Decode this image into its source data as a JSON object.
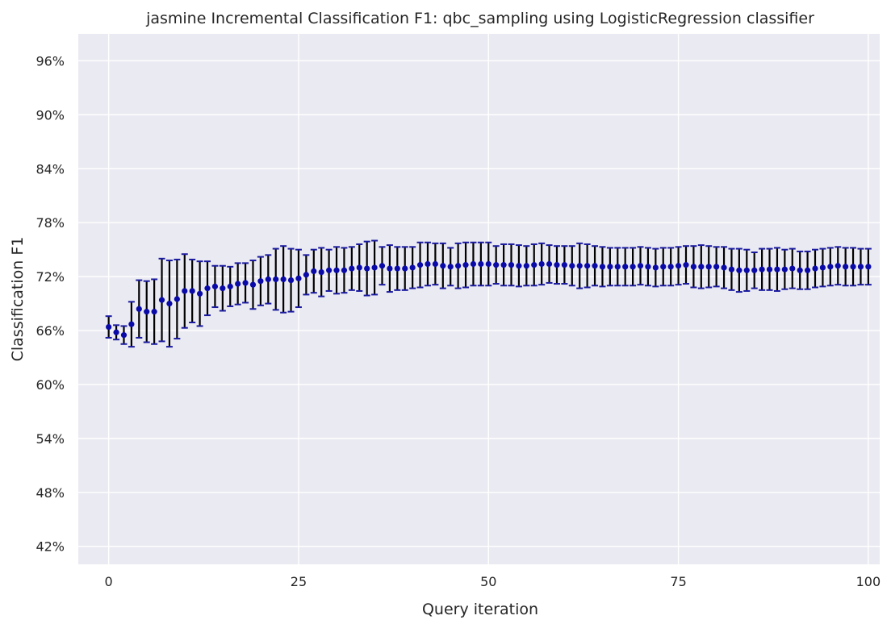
{
  "chart_data": {
    "type": "scatter",
    "title": "jasmine Incremental Classification F1: qbc_sampling using LogisticRegression classifier",
    "xlabel": "Query iteration",
    "ylabel": "Classification F1",
    "xlim": [
      -4,
      101.5
    ],
    "ylim": [
      0.4,
      0.99
    ],
    "x_ticks": [
      0,
      25,
      50,
      75,
      100
    ],
    "y_ticks": [
      0.42,
      0.48,
      0.54,
      0.6,
      0.66,
      0.72,
      0.78,
      0.84,
      0.9,
      0.96
    ],
    "y_tick_labels": [
      "42%",
      "48%",
      "54%",
      "60%",
      "66%",
      "72%",
      "78%",
      "84%",
      "90%",
      "96%"
    ],
    "grid": true,
    "colors": {
      "background": "#eaeaf2",
      "grid": "#ffffff",
      "marker": "#0a0aa8",
      "errorbar": "#000000",
      "cap": "#1a1aa0"
    },
    "x": [
      0,
      1,
      2,
      3,
      4,
      5,
      6,
      7,
      8,
      9,
      10,
      11,
      12,
      13,
      14,
      15,
      16,
      17,
      18,
      19,
      20,
      21,
      22,
      23,
      24,
      25,
      26,
      27,
      28,
      29,
      30,
      31,
      32,
      33,
      34,
      35,
      36,
      37,
      38,
      39,
      40,
      41,
      42,
      43,
      44,
      45,
      46,
      47,
      48,
      49,
      50,
      51,
      52,
      53,
      54,
      55,
      56,
      57,
      58,
      59,
      60,
      61,
      62,
      63,
      64,
      65,
      66,
      67,
      68,
      69,
      70,
      71,
      72,
      73,
      74,
      75,
      76,
      77,
      78,
      79,
      80,
      81,
      82,
      83,
      84,
      85,
      86,
      87,
      88,
      89,
      90,
      91,
      92,
      93,
      94,
      95,
      96,
      97,
      98,
      99,
      100
    ],
    "y": [
      0.664,
      0.658,
      0.655,
      0.667,
      0.684,
      0.681,
      0.681,
      0.694,
      0.69,
      0.695,
      0.704,
      0.704,
      0.701,
      0.707,
      0.709,
      0.707,
      0.709,
      0.712,
      0.713,
      0.711,
      0.715,
      0.717,
      0.717,
      0.717,
      0.716,
      0.718,
      0.722,
      0.726,
      0.725,
      0.727,
      0.727,
      0.727,
      0.729,
      0.73,
      0.729,
      0.73,
      0.732,
      0.729,
      0.729,
      0.729,
      0.73,
      0.733,
      0.734,
      0.734,
      0.732,
      0.731,
      0.732,
      0.733,
      0.734,
      0.734,
      0.734,
      0.733,
      0.733,
      0.733,
      0.732,
      0.732,
      0.733,
      0.734,
      0.734,
      0.733,
      0.733,
      0.732,
      0.732,
      0.732,
      0.732,
      0.731,
      0.731,
      0.731,
      0.731,
      0.731,
      0.732,
      0.731,
      0.73,
      0.731,
      0.731,
      0.732,
      0.733,
      0.731,
      0.731,
      0.731,
      0.731,
      0.73,
      0.728,
      0.727,
      0.727,
      0.727,
      0.728,
      0.728,
      0.728,
      0.728,
      0.729,
      0.727,
      0.727,
      0.729,
      0.73,
      0.731,
      0.732,
      0.731,
      0.731,
      0.731,
      0.731
    ],
    "err": [
      0.012,
      0.008,
      0.01,
      0.025,
      0.032,
      0.034,
      0.036,
      0.046,
      0.048,
      0.044,
      0.041,
      0.035,
      0.036,
      0.03,
      0.023,
      0.025,
      0.022,
      0.023,
      0.022,
      0.027,
      0.027,
      0.027,
      0.034,
      0.037,
      0.035,
      0.032,
      0.022,
      0.024,
      0.027,
      0.023,
      0.026,
      0.025,
      0.024,
      0.026,
      0.03,
      0.03,
      0.021,
      0.026,
      0.024,
      0.024,
      0.023,
      0.025,
      0.024,
      0.023,
      0.025,
      0.021,
      0.025,
      0.025,
      0.024,
      0.024,
      0.024,
      0.021,
      0.023,
      0.023,
      0.023,
      0.022,
      0.023,
      0.023,
      0.021,
      0.021,
      0.021,
      0.022,
      0.025,
      0.024,
      0.022,
      0.022,
      0.021,
      0.021,
      0.021,
      0.021,
      0.021,
      0.021,
      0.021,
      0.021,
      0.021,
      0.021,
      0.021,
      0.023,
      0.024,
      0.023,
      0.022,
      0.023,
      0.023,
      0.024,
      0.023,
      0.02,
      0.023,
      0.023,
      0.024,
      0.022,
      0.022,
      0.021,
      0.021,
      0.021,
      0.021,
      0.021,
      0.021,
      0.021,
      0.021,
      0.02,
      0.02
    ]
  }
}
